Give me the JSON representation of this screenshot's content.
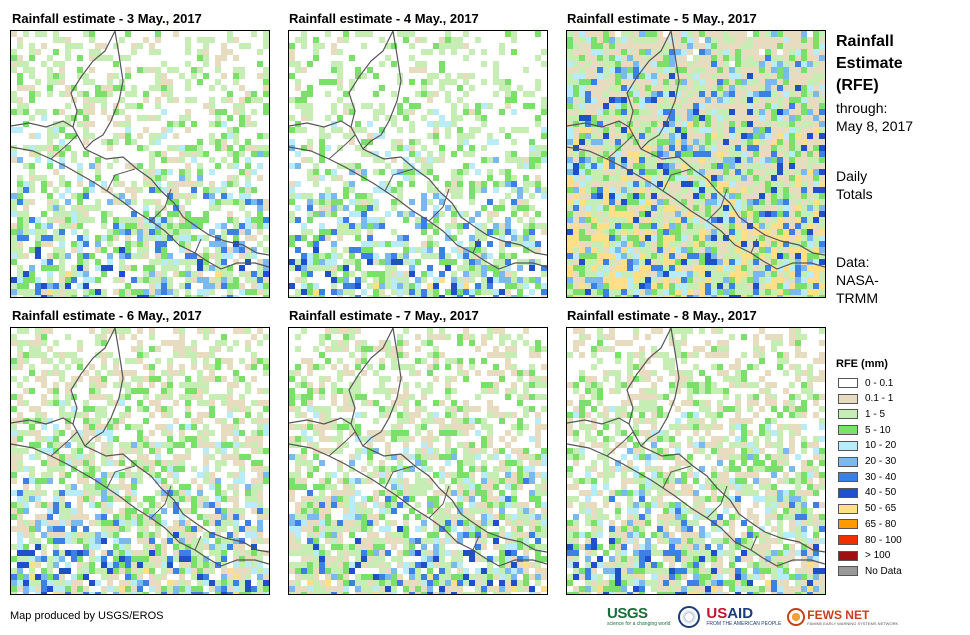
{
  "panels": [
    {
      "title": "Rainfall estimate - 3 May., 2017",
      "seed": 3
    },
    {
      "title": "Rainfall estimate - 4 May., 2017",
      "seed": 4
    },
    {
      "title": "Rainfall estimate - 5 May., 2017",
      "seed": 5
    },
    {
      "title": "Rainfall estimate - 6 May., 2017",
      "seed": 6
    },
    {
      "title": "Rainfall estimate - 7 May., 2017",
      "seed": 7
    },
    {
      "title": "Rainfall estimate - 8 May., 2017",
      "seed": 8
    }
  ],
  "info": {
    "title_line1": "Rainfall",
    "title_line2": "Estimate",
    "title_line3": "(RFE)",
    "through_label": "through:",
    "through_date": "May 8, 2017",
    "totals_line1": "Daily",
    "totals_line2": "Totals",
    "data_line1": "Data:",
    "data_line2": "NASA-",
    "data_line3": "TRMM"
  },
  "legend": {
    "title": "RFE (mm)",
    "classes": [
      {
        "label": "0 - 0.1",
        "color": "#ffffff"
      },
      {
        "label": "0.1 - 1",
        "color": "#e8dcc0"
      },
      {
        "label": "1 - 5",
        "color": "#c6eeb4"
      },
      {
        "label": "5 - 10",
        "color": "#7be06a"
      },
      {
        "label": "10 - 20",
        "color": "#b8ecf8"
      },
      {
        "label": "20 - 30",
        "color": "#7ab8f0"
      },
      {
        "label": "30 - 40",
        "color": "#3c80e4"
      },
      {
        "label": "40 - 50",
        "color": "#2050c8"
      },
      {
        "label": "50 - 65",
        "color": "#ffe088"
      },
      {
        "label": "65 - 80",
        "color": "#ff9a00"
      },
      {
        "label": "80 - 100",
        "color": "#f03000"
      },
      {
        "label": "> 100",
        "color": "#a01010"
      },
      {
        "label": "No Data",
        "color": "#999999"
      }
    ]
  },
  "footer": {
    "credit": "Map produced by USGS/EROS"
  },
  "logos": {
    "usgs": "USGS",
    "usgs_tagline": "science for a changing world",
    "usaid_prefix": "US",
    "usaid_suffix": "AID",
    "usaid_tagline": "FROM THE AMERICAN PEOPLE",
    "fews": "FEWS NET",
    "fews_tagline": "FAMINE EARLY WARNING SYSTEMS NETWORK"
  }
}
